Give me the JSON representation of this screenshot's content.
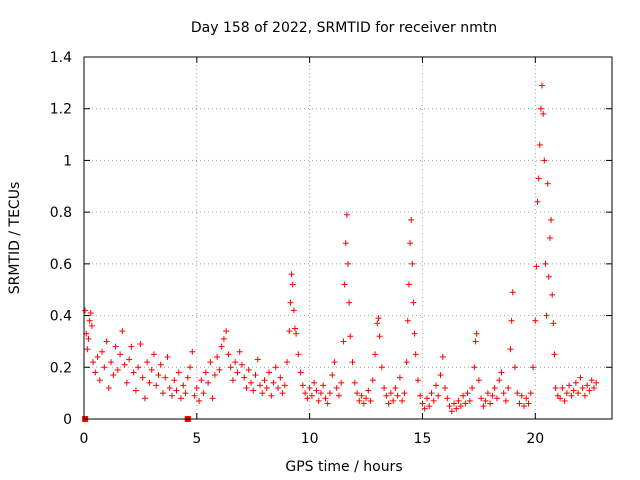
{
  "chart_data": {
    "type": "scatter",
    "title": "Day 158 of 2022, SRMTID for receiver nmtn",
    "xlabel": "GPS time / hours",
    "ylabel": "SRMTID / TECUs",
    "xlim": [
      0,
      23.4
    ],
    "ylim": [
      0,
      1.4
    ],
    "x_ticks": [
      0,
      5,
      10,
      15,
      20
    ],
    "x_tick_labels": [
      "0",
      "5",
      "10",
      "15",
      "20"
    ],
    "y_ticks": [
      0,
      0.2,
      0.4,
      0.6,
      0.8,
      1.0,
      1.2,
      1.4
    ],
    "y_tick_labels": [
      "0",
      "0.2",
      "0.4",
      "0.6",
      "0.8",
      "1",
      "1.2",
      "1.4"
    ],
    "grid": true,
    "marker": "plus",
    "color": "#ff0000",
    "zero_markers": [
      {
        "x": 0.05,
        "y": 0.0
      },
      {
        "x": 4.6,
        "y": 0.0
      }
    ],
    "series": [
      {
        "name": "SRMTID",
        "points": [
          [
            0.05,
            0.42
          ],
          [
            0.1,
            0.33
          ],
          [
            0.15,
            0.27
          ],
          [
            0.2,
            0.31
          ],
          [
            0.25,
            0.38
          ],
          [
            0.3,
            0.41
          ],
          [
            0.35,
            0.36
          ],
          [
            0.4,
            0.22
          ],
          [
            0.5,
            0.18
          ],
          [
            0.6,
            0.24
          ],
          [
            0.7,
            0.15
          ],
          [
            0.8,
            0.26
          ],
          [
            0.9,
            0.2
          ],
          [
            1.0,
            0.3
          ],
          [
            1.1,
            0.12
          ],
          [
            1.2,
            0.22
          ],
          [
            1.3,
            0.17
          ],
          [
            1.4,
            0.28
          ],
          [
            1.5,
            0.19
          ],
          [
            1.6,
            0.25
          ],
          [
            1.7,
            0.34
          ],
          [
            1.8,
            0.21
          ],
          [
            1.9,
            0.14
          ],
          [
            2.0,
            0.23
          ],
          [
            2.1,
            0.28
          ],
          [
            2.2,
            0.18
          ],
          [
            2.3,
            0.11
          ],
          [
            2.4,
            0.2
          ],
          [
            2.5,
            0.29
          ],
          [
            2.6,
            0.16
          ],
          [
            2.7,
            0.08
          ],
          [
            2.8,
            0.22
          ],
          [
            2.9,
            0.14
          ],
          [
            3.0,
            0.19
          ],
          [
            3.1,
            0.25
          ],
          [
            3.2,
            0.13
          ],
          [
            3.3,
            0.17
          ],
          [
            3.4,
            0.21
          ],
          [
            3.5,
            0.1
          ],
          [
            3.6,
            0.16
          ],
          [
            3.7,
            0.24
          ],
          [
            3.8,
            0.12
          ],
          [
            3.9,
            0.09
          ],
          [
            4.0,
            0.15
          ],
          [
            4.1,
            0.11
          ],
          [
            4.2,
            0.18
          ],
          [
            4.3,
            0.08
          ],
          [
            4.4,
            0.13
          ],
          [
            4.5,
            0.1
          ],
          [
            4.6,
            0.16
          ],
          [
            4.7,
            0.2
          ],
          [
            4.8,
            0.26
          ],
          [
            4.9,
            0.09
          ],
          [
            5.0,
            0.12
          ],
          [
            5.1,
            0.07
          ],
          [
            5.2,
            0.15
          ],
          [
            5.3,
            0.1
          ],
          [
            5.4,
            0.18
          ],
          [
            5.5,
            0.14
          ],
          [
            5.6,
            0.22
          ],
          [
            5.7,
            0.08
          ],
          [
            5.8,
            0.17
          ],
          [
            5.9,
            0.24
          ],
          [
            6.0,
            0.19
          ],
          [
            6.1,
            0.28
          ],
          [
            6.2,
            0.31
          ],
          [
            6.3,
            0.34
          ],
          [
            6.4,
            0.25
          ],
          [
            6.5,
            0.2
          ],
          [
            6.6,
            0.15
          ],
          [
            6.7,
            0.22
          ],
          [
            6.8,
            0.18
          ],
          [
            6.9,
            0.26
          ],
          [
            7.0,
            0.21
          ],
          [
            7.1,
            0.16
          ],
          [
            7.2,
            0.12
          ],
          [
            7.3,
            0.19
          ],
          [
            7.4,
            0.14
          ],
          [
            7.5,
            0.11
          ],
          [
            7.6,
            0.17
          ],
          [
            7.7,
            0.23
          ],
          [
            7.8,
            0.13
          ],
          [
            7.9,
            0.1
          ],
          [
            8.0,
            0.15
          ],
          [
            8.1,
            0.12
          ],
          [
            8.2,
            0.18
          ],
          [
            8.3,
            0.09
          ],
          [
            8.4,
            0.14
          ],
          [
            8.5,
            0.2
          ],
          [
            8.6,
            0.12
          ],
          [
            8.7,
            0.16
          ],
          [
            8.8,
            0.1
          ],
          [
            8.9,
            0.13
          ],
          [
            9.0,
            0.22
          ],
          [
            9.1,
            0.34
          ],
          [
            9.15,
            0.45
          ],
          [
            9.2,
            0.56
          ],
          [
            9.25,
            0.52
          ],
          [
            9.3,
            0.42
          ],
          [
            9.35,
            0.35
          ],
          [
            9.4,
            0.33
          ],
          [
            9.5,
            0.25
          ],
          [
            9.6,
            0.18
          ],
          [
            9.7,
            0.13
          ],
          [
            9.8,
            0.1
          ],
          [
            9.9,
            0.08
          ],
          [
            10.0,
            0.12
          ],
          [
            10.1,
            0.09
          ],
          [
            10.2,
            0.14
          ],
          [
            10.3,
            0.11
          ],
          [
            10.4,
            0.07
          ],
          [
            10.5,
            0.1
          ],
          [
            10.6,
            0.13
          ],
          [
            10.7,
            0.08
          ],
          [
            10.8,
            0.06
          ],
          [
            10.9,
            0.1
          ],
          [
            11.0,
            0.17
          ],
          [
            11.1,
            0.22
          ],
          [
            11.2,
            0.12
          ],
          [
            11.3,
            0.09
          ],
          [
            11.4,
            0.14
          ],
          [
            11.5,
            0.3
          ],
          [
            11.55,
            0.52
          ],
          [
            11.6,
            0.68
          ],
          [
            11.65,
            0.79
          ],
          [
            11.7,
            0.6
          ],
          [
            11.75,
            0.45
          ],
          [
            11.8,
            0.32
          ],
          [
            11.9,
            0.22
          ],
          [
            12.0,
            0.14
          ],
          [
            12.1,
            0.1
          ],
          [
            12.2,
            0.07
          ],
          [
            12.3,
            0.09
          ],
          [
            12.4,
            0.06
          ],
          [
            12.5,
            0.08
          ],
          [
            12.6,
            0.11
          ],
          [
            12.7,
            0.07
          ],
          [
            12.8,
            0.15
          ],
          [
            12.9,
            0.25
          ],
          [
            13.0,
            0.37
          ],
          [
            13.05,
            0.39
          ],
          [
            13.1,
            0.32
          ],
          [
            13.2,
            0.2
          ],
          [
            13.3,
            0.12
          ],
          [
            13.4,
            0.09
          ],
          [
            13.5,
            0.06
          ],
          [
            13.6,
            0.1
          ],
          [
            13.7,
            0.07
          ],
          [
            13.8,
            0.12
          ],
          [
            13.9,
            0.09
          ],
          [
            14.0,
            0.16
          ],
          [
            14.1,
            0.07
          ],
          [
            14.2,
            0.1
          ],
          [
            14.3,
            0.22
          ],
          [
            14.35,
            0.38
          ],
          [
            14.4,
            0.52
          ],
          [
            14.45,
            0.68
          ],
          [
            14.5,
            0.77
          ],
          [
            14.55,
            0.6
          ],
          [
            14.6,
            0.45
          ],
          [
            14.65,
            0.33
          ],
          [
            14.7,
            0.25
          ],
          [
            14.8,
            0.15
          ],
          [
            14.9,
            0.09
          ],
          [
            15.0,
            0.06
          ],
          [
            15.1,
            0.04
          ],
          [
            15.2,
            0.08
          ],
          [
            15.3,
            0.05
          ],
          [
            15.4,
            0.1
          ],
          [
            15.5,
            0.07
          ],
          [
            15.6,
            0.13
          ],
          [
            15.7,
            0.09
          ],
          [
            15.8,
            0.17
          ],
          [
            15.9,
            0.24
          ],
          [
            16.0,
            0.12
          ],
          [
            16.1,
            0.08
          ],
          [
            16.2,
            0.05
          ],
          [
            16.3,
            0.03
          ],
          [
            16.4,
            0.06
          ],
          [
            16.5,
            0.04
          ],
          [
            16.6,
            0.07
          ],
          [
            16.7,
            0.05
          ],
          [
            16.8,
            0.09
          ],
          [
            16.9,
            0.06
          ],
          [
            17.0,
            0.1
          ],
          [
            17.1,
            0.07
          ],
          [
            17.2,
            0.12
          ],
          [
            17.3,
            0.2
          ],
          [
            17.35,
            0.3
          ],
          [
            17.4,
            0.33
          ],
          [
            17.5,
            0.15
          ],
          [
            17.6,
            0.08
          ],
          [
            17.7,
            0.05
          ],
          [
            17.8,
            0.07
          ],
          [
            17.9,
            0.1
          ],
          [
            18.0,
            0.06
          ],
          [
            18.1,
            0.09
          ],
          [
            18.2,
            0.12
          ],
          [
            18.3,
            0.08
          ],
          [
            18.4,
            0.15
          ],
          [
            18.5,
            0.18
          ],
          [
            18.6,
            0.1
          ],
          [
            18.7,
            0.07
          ],
          [
            18.8,
            0.12
          ],
          [
            18.9,
            0.27
          ],
          [
            18.95,
            0.38
          ],
          [
            19.0,
            0.49
          ],
          [
            19.1,
            0.2
          ],
          [
            19.2,
            0.1
          ],
          [
            19.3,
            0.06
          ],
          [
            19.4,
            0.09
          ],
          [
            19.5,
            0.05
          ],
          [
            19.6,
            0.08
          ],
          [
            19.7,
            0.06
          ],
          [
            19.8,
            0.1
          ],
          [
            19.9,
            0.2
          ],
          [
            20.0,
            0.38
          ],
          [
            20.05,
            0.59
          ],
          [
            20.1,
            0.84
          ],
          [
            20.15,
            0.93
          ],
          [
            20.2,
            1.06
          ],
          [
            20.25,
            1.2
          ],
          [
            20.3,
            1.29
          ],
          [
            20.35,
            1.18
          ],
          [
            20.4,
            1.0
          ],
          [
            20.45,
            0.6
          ],
          [
            20.5,
            0.4
          ],
          [
            20.55,
            0.91
          ],
          [
            20.6,
            0.55
          ],
          [
            20.65,
            0.7
          ],
          [
            20.7,
            0.77
          ],
          [
            20.75,
            0.48
          ],
          [
            20.8,
            0.37
          ],
          [
            20.85,
            0.25
          ],
          [
            20.9,
            0.12
          ],
          [
            21.0,
            0.09
          ],
          [
            21.1,
            0.08
          ],
          [
            21.2,
            0.12
          ],
          [
            21.3,
            0.07
          ],
          [
            21.4,
            0.1
          ],
          [
            21.5,
            0.13
          ],
          [
            21.6,
            0.09
          ],
          [
            21.7,
            0.11
          ],
          [
            21.8,
            0.14
          ],
          [
            21.9,
            0.1
          ],
          [
            22.0,
            0.16
          ],
          [
            22.1,
            0.12
          ],
          [
            22.2,
            0.09
          ],
          [
            22.3,
            0.13
          ],
          [
            22.4,
            0.11
          ],
          [
            22.5,
            0.15
          ],
          [
            22.6,
            0.12
          ],
          [
            22.7,
            0.14
          ]
        ]
      }
    ]
  }
}
